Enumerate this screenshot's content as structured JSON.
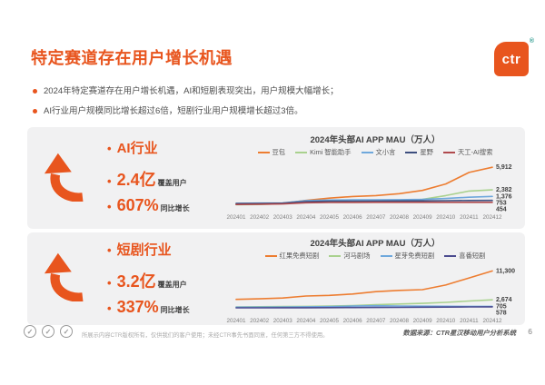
{
  "colors": {
    "accent": "#E8551E",
    "card-bg": "#F1F1F2",
    "text-dark": "#3F3F3F",
    "text-gray": "#595959",
    "axis-gray": "#808080"
  },
  "slide": {
    "title": "特定赛道存在用户增长机遇",
    "logo_text": "ctr",
    "logo_reg": "®",
    "bullets": [
      "2024年特定赛道存在用户增长机遇，AI和短剧表现突出，用户规模大幅增长；",
      "AI行业用户规模同比增长超过6倍，短剧行业用户规模增长超过3倍。"
    ],
    "footer_copyright": "所展示内容CTR版权所有，仅供我们的客户使用；未经CTR事先书面同意，任何第三方不得使用。",
    "footer_source": "数据来源：CTR星汉移动用户分析系统",
    "page_number": "6",
    "badge_check": "✓"
  },
  "sections": [
    {
      "industry_label": "AI行业",
      "scale_value": "2.4亿",
      "scale_label": "覆盖用户",
      "growth_value": "607%",
      "growth_label": "同比增长"
    },
    {
      "industry_label": "短剧行业",
      "scale_value": "3.2亿",
      "scale_label": "覆盖用户",
      "growth_value": "337%",
      "growth_label": "同比增长"
    }
  ],
  "chart_data": [
    {
      "type": "line",
      "title": "2024年头部AI APP MAU（万人）",
      "xlabel": "",
      "ylabel": "MAU（万人）",
      "x": [
        "202401",
        "202402",
        "202403",
        "202404",
        "202405",
        "202406",
        "202407",
        "202408",
        "202409",
        "202410",
        "202411",
        "202412"
      ],
      "ylim": [
        0,
        6500
      ],
      "grid": false,
      "legend_position": "top",
      "series": [
        {
          "name": "豆包",
          "color": "#ED7D31",
          "values": [
            150,
            200,
            300,
            750,
            1100,
            1350,
            1500,
            1800,
            2300,
            3300,
            5100,
            5912
          ],
          "end_label": "5,912"
        },
        {
          "name": "Kimi 智能助手",
          "color": "#A9D18E",
          "values": [
            80,
            120,
            260,
            480,
            520,
            550,
            580,
            660,
            900,
            1500,
            2200,
            2382
          ],
          "end_label": "2,382"
        },
        {
          "name": "文小言",
          "color": "#6FA8DC",
          "values": [
            300,
            320,
            360,
            720,
            800,
            830,
            850,
            860,
            900,
            1050,
            1250,
            1376
          ],
          "end_label": "1,376"
        },
        {
          "name": "星野",
          "color": "#3D4E7E",
          "values": [
            250,
            280,
            320,
            560,
            620,
            640,
            650,
            660,
            680,
            700,
            730,
            753
          ],
          "end_label": "753"
        },
        {
          "name": "天工-AI搜索",
          "color": "#B04A4E",
          "values": [
            120,
            150,
            200,
            380,
            430,
            440,
            450,
            450,
            455,
            450,
            452,
            454
          ],
          "end_label": "454"
        }
      ]
    },
    {
      "type": "line",
      "title": "2024年头部AI APP MAU（万人）",
      "xlabel": "",
      "ylabel": "MAU（万人）",
      "x": [
        "202401",
        "202402",
        "202403",
        "202404",
        "202405",
        "202406",
        "202407",
        "202408",
        "202409",
        "202410",
        "202411",
        "202412"
      ],
      "ylim": [
        0,
        12500
      ],
      "grid": false,
      "legend_position": "top",
      "series": [
        {
          "name": "红果免费短剧",
          "color": "#ED7D31",
          "values": [
            2800,
            2950,
            3200,
            3800,
            4000,
            4400,
            5100,
            5500,
            5700,
            7100,
            9200,
            11300
          ],
          "end_label": "11,300"
        },
        {
          "name": "河马剧场",
          "color": "#A9D18E",
          "values": [
            550,
            600,
            650,
            720,
            800,
            950,
            1200,
            1400,
            1600,
            1900,
            2300,
            2674
          ],
          "end_label": "2,674"
        },
        {
          "name": "星芽免费短剧",
          "color": "#6FA8DC",
          "values": [
            450,
            470,
            500,
            560,
            620,
            780,
            900,
            820,
            760,
            730,
            710,
            705
          ],
          "end_label": "705"
        },
        {
          "name": "喜番短剧",
          "color": "#4B4B8F",
          "values": [
            260,
            270,
            290,
            310,
            330,
            360,
            390,
            420,
            460,
            500,
            540,
            578
          ],
          "end_label": "578"
        }
      ]
    }
  ]
}
